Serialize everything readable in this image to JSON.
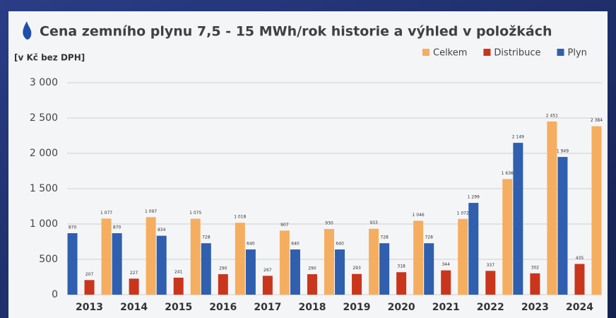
{
  "chart_data": {
    "type": "bar",
    "title": "Cena zemního plynu 7,5 - 15 MWh/rok historie a výhled v položkách",
    "ylabel": "[v Kč bez DPH]",
    "categories": [
      "2013",
      "2014",
      "2015",
      "2016",
      "2017",
      "2018",
      "2019",
      "2020",
      "2021",
      "2022",
      "2023",
      "2024"
    ],
    "series": [
      {
        "name": "Plyn",
        "color": "#2f5fae",
        "values": [
          870,
          870,
          834,
          728,
          640,
          640,
          640,
          728,
          728,
          1299,
          2149,
          1949
        ],
        "value_labels": [
          "870",
          "870",
          "834",
          "728",
          "640",
          "640",
          "640",
          "728",
          "728",
          "1 299",
          "2 149",
          "1 949"
        ]
      },
      {
        "name": "Distribuce",
        "color": "#c9361c",
        "values": [
          207,
          227,
          241,
          290,
          267,
          290,
          293,
          318,
          344,
          337,
          302,
          435
        ],
        "value_labels": [
          "207",
          "227",
          "241",
          "290",
          "267",
          "290",
          "293",
          "318",
          "344",
          "337",
          "302",
          "435"
        ]
      },
      {
        "name": "Celkem",
        "color": "#f5ae5f",
        "values": [
          1077,
          1097,
          1075,
          1018,
          907,
          930,
          933,
          1046,
          1072,
          1636,
          2451,
          2384
        ],
        "value_labels": [
          "1 077",
          "1 097",
          "1 075",
          "1 018",
          "907",
          "930",
          "933",
          "1 046",
          "1 072",
          "1 636",
          "2 451",
          "2 384"
        ]
      }
    ],
    "ylim": [
      0,
      3000
    ],
    "yticks": [
      0,
      500,
      {
        "value": 1000,
        "label": "1 000"
      },
      {
        "value": 1500,
        "label": "1 500"
      },
      {
        "value": 2000,
        "label": "2 000"
      },
      {
        "value": 2500,
        "label": "2 500"
      },
      {
        "value": 3000,
        "label": "3 000"
      }
    ],
    "grid": true,
    "legend": "top-right"
  }
}
